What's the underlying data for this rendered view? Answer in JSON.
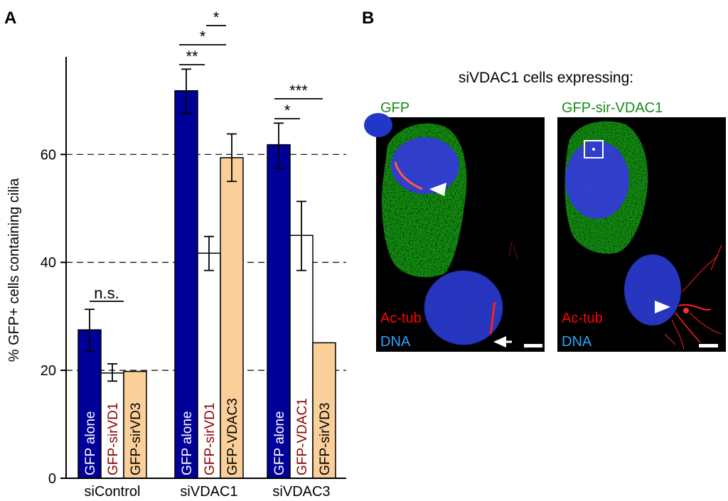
{
  "panel_a_letter": "A",
  "panel_b_letter": "B",
  "chart_data": {
    "type": "bar",
    "ylabel": "% GFP+ cells containing cilia",
    "ylim": [
      0,
      75
    ],
    "yticks": [
      0,
      20,
      40,
      60
    ],
    "grid": "dashed horizontal at 20, 40, 60",
    "groups": [
      {
        "name": "siControl",
        "bars": [
          {
            "label": "GFP alone",
            "value": 27.5,
            "err_low": 23.5,
            "err_high": 31.3,
            "fill": "#000099",
            "text_color": "#ffffff"
          },
          {
            "label": "GFP-sirVD1",
            "value": 19.5,
            "err_low": 18.0,
            "err_high": 21.2,
            "fill": "#ffffff",
            "text_color": "#8b0000"
          },
          {
            "label": "GFP-sirVD3",
            "value": 19.8,
            "err_low": null,
            "err_high": null,
            "fill": "#fbcf9a",
            "text_color": "#000000"
          }
        ],
        "significance": [
          {
            "text": "n.s.",
            "from": 0,
            "to": 2
          }
        ]
      },
      {
        "name": "siVDAC1",
        "bars": [
          {
            "label": "GFP alone",
            "value": 71.8,
            "err_low": 67.6,
            "err_high": 75.8,
            "fill": "#000099",
            "text_color": "#ffffff"
          },
          {
            "label": "GFP-sirVD1",
            "value": 41.7,
            "err_low": 38.5,
            "err_high": 44.8,
            "fill": "#ffffff",
            "text_color": "#8b0000"
          },
          {
            "label": "GFP-VDAC3",
            "value": 59.4,
            "err_low": 55.0,
            "err_high": 63.8,
            "fill": "#fbcf9a",
            "text_color": "#000000"
          }
        ],
        "significance": [
          {
            "text": "**",
            "from": 0,
            "to": 1
          },
          {
            "text": "*",
            "from": 0,
            "to": 2
          },
          {
            "text": "*",
            "from": 1,
            "to": 2
          }
        ]
      },
      {
        "name": "siVDAC3",
        "bars": [
          {
            "label": "GFP alone",
            "value": 61.8,
            "err_low": 57.4,
            "err_high": 65.8,
            "fill": "#000099",
            "text_color": "#ffffff"
          },
          {
            "label": "GFP-VDAC1",
            "value": 45.0,
            "err_low": 38.5,
            "err_high": 51.3,
            "fill": "#ffffff",
            "text_color": "#8b0000"
          },
          {
            "label": "GFP-sirVD3",
            "value": 25.1,
            "err_low": null,
            "err_high": null,
            "fill": "#fbcf9a",
            "text_color": "#000000"
          }
        ],
        "significance": [
          {
            "text": "*",
            "from": 0,
            "to": 1
          },
          {
            "text": "***",
            "from": 0,
            "to": 2
          }
        ]
      }
    ]
  },
  "panel_b": {
    "title": "siVDAC1 cells expressing:",
    "images": [
      {
        "header": "GFP",
        "label_red": "Ac-tub",
        "label_blue": "DNA"
      },
      {
        "header": "GFP-sir-VDAC1",
        "label_red": "Ac-tub",
        "label_blue": "DNA"
      }
    ],
    "colors": {
      "gfp_text": "#1a8a1a",
      "red_text": "#ff0000",
      "blue_text": "#2aa6ff"
    }
  }
}
